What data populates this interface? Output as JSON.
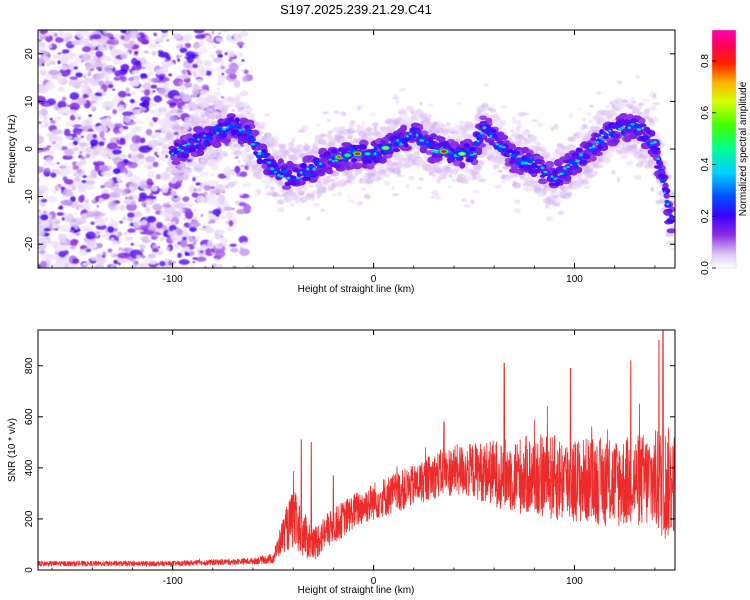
{
  "title": "S197.2025.239.21.29.C41",
  "chart_data": [
    {
      "type": "heatmap",
      "description_kind": "spectrogram",
      "xlabel": "Height of straight line (km)",
      "ylabel": "Frequency (Hz)",
      "xlim": [
        -167,
        150
      ],
      "ylim": [
        -25,
        25
      ],
      "xticks": [
        -100,
        0,
        100
      ],
      "xtick_labels": [
        "-100",
        "0",
        "100"
      ],
      "yticks": [
        -20,
        -10,
        0,
        10,
        20
      ],
      "ytick_labels": [
        "-20",
        "-10",
        "0",
        "10",
        "20"
      ],
      "colorbar": {
        "label": "Normalized spectral amplitude",
        "range": [
          0,
          0.92
        ],
        "ticks": [
          0.0,
          0.2,
          0.4,
          0.6,
          0.8
        ],
        "tick_labels": [
          "0.0",
          "0.2",
          "0.4",
          "0.6",
          "0.8"
        ],
        "colors": [
          "#ffffff",
          "#d8b8f0",
          "#8a2be2",
          "#3a00ff",
          "#0040ff",
          "#00c8ff",
          "#00ff80",
          "#40ff00",
          "#ffff00",
          "#ff9000",
          "#ff0000",
          "#ff00a0"
        ]
      },
      "ridge_trace": {
        "x": [
          -100,
          -90,
          -80,
          -70,
          -62,
          -55,
          -48,
          -40,
          -30,
          -20,
          -10,
          0,
          10,
          20,
          30,
          40,
          50,
          55,
          60,
          70,
          80,
          90,
          100,
          110,
          120,
          130,
          140,
          148
        ],
        "y": [
          -1,
          1,
          3,
          5,
          3,
          -2,
          -5,
          -6,
          -4,
          -2,
          -1,
          -1,
          1,
          3,
          0,
          -1,
          -1,
          5,
          2,
          -2,
          -3,
          -6,
          -3,
          1,
          4,
          5,
          1,
          -15
        ]
      },
      "noise_region_x": [
        -167,
        -62
      ]
    },
    {
      "type": "line",
      "xlabel": "Height of straight line (km)",
      "ylabel": "SNR (10 * v/v)",
      "xlim": [
        -167,
        150
      ],
      "ylim": [
        0,
        940
      ],
      "xticks": [
        -100,
        0,
        100
      ],
      "xtick_labels": [
        "-100",
        "0",
        "100"
      ],
      "yticks": [
        0,
        200,
        400,
        600,
        800
      ],
      "ytick_labels": [
        "0",
        "200",
        "400",
        "600",
        "800"
      ],
      "series": [
        {
          "name": "SNR",
          "color": "#ee2b2b",
          "envelope_x": [
            -167,
            -100,
            -60,
            -50,
            -45,
            -40,
            -35,
            -30,
            -25,
            -20,
            -10,
            0,
            10,
            20,
            30,
            40,
            50,
            60,
            70,
            80,
            90,
            100,
            110,
            120,
            130,
            140,
            145,
            150
          ],
          "envelope_mean": [
            25,
            25,
            35,
            45,
            140,
            200,
            140,
            100,
            140,
            170,
            230,
            270,
            300,
            330,
            370,
            390,
            390,
            380,
            370,
            370,
            360,
            350,
            350,
            340,
            350,
            350,
            340,
            340
          ],
          "envelope_spread": [
            10,
            10,
            12,
            20,
            70,
            120,
            90,
            70,
            70,
            70,
            70,
            75,
            80,
            80,
            90,
            100,
            110,
            130,
            150,
            160,
            170,
            170,
            170,
            180,
            180,
            200,
            230,
            200
          ],
          "peaks": [
            {
              "x": -36,
              "y": 510
            },
            {
              "x": -31,
              "y": 500
            },
            {
              "x": -20,
              "y": 370
            },
            {
              "x": 35,
              "y": 580
            },
            {
              "x": 65,
              "y": 810
            },
            {
              "x": 98,
              "y": 790
            },
            {
              "x": 128,
              "y": 820
            },
            {
              "x": 142,
              "y": 900
            },
            {
              "x": 144,
              "y": 940
            }
          ]
        }
      ]
    }
  ]
}
